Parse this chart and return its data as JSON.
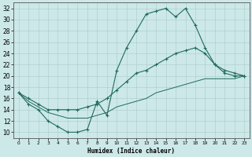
{
  "xlabel": "Humidex (Indice chaleur)",
  "xlim": [
    -0.5,
    23.5
  ],
  "ylim": [
    9,
    33
  ],
  "yticks": [
    10,
    12,
    14,
    16,
    18,
    20,
    22,
    24,
    26,
    28,
    30,
    32
  ],
  "xticks": [
    0,
    1,
    2,
    3,
    4,
    5,
    6,
    7,
    8,
    9,
    10,
    11,
    12,
    13,
    14,
    15,
    16,
    17,
    18,
    19,
    20,
    21,
    22,
    23
  ],
  "bg_color": "#cde8e8",
  "line_color": "#1f6b5e",
  "line1_y": [
    17,
    15,
    14,
    12,
    11,
    10,
    10,
    10.5,
    15.5,
    13,
    21,
    25,
    28,
    31,
    31.5,
    32,
    30.5,
    32,
    29,
    25,
    22,
    20.5,
    20,
    20
  ],
  "line2_y": [
    17,
    16,
    15,
    14,
    14,
    14,
    14,
    14.5,
    15,
    16,
    17.5,
    19,
    20.5,
    21,
    22,
    23,
    24,
    24.5,
    25,
    24,
    22,
    21,
    20.5,
    20
  ],
  "line3_y": [
    17,
    15.5,
    14.5,
    13.5,
    13,
    12.5,
    12.5,
    12.5,
    13,
    13.5,
    14.5,
    15,
    15.5,
    16,
    17,
    17.5,
    18,
    18.5,
    19,
    19.5,
    19.5,
    19.5,
    19.5,
    20
  ]
}
